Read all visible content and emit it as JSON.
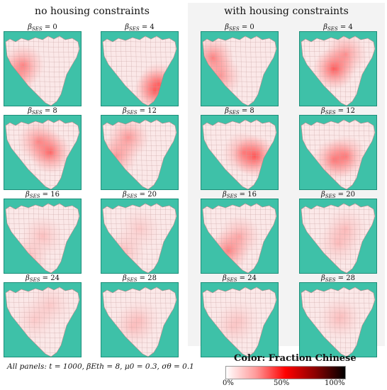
{
  "groups": [
    {
      "title": "no housing constraints"
    },
    {
      "title": "with housing constraints"
    }
  ],
  "panel_symbol": "β",
  "panel_subscript": "SES",
  "panels": [
    {
      "beta": "0"
    },
    {
      "beta": "4"
    },
    {
      "beta": "8"
    },
    {
      "beta": "12"
    },
    {
      "beta": "16"
    },
    {
      "beta": "20"
    },
    {
      "beta": "24"
    },
    {
      "beta": "28"
    }
  ],
  "caption": "All panels: t = 1000, βEth = 8, μ0 = 0.3, σθ = 0.1",
  "legend": {
    "title": "Color: Fraction Chinese",
    "ticks": [
      "0%",
      "50%",
      "100%"
    ],
    "colors": [
      "#ffffff",
      "#ff0000",
      "#000000"
    ]
  },
  "colors": {
    "water": "#3ec1a8",
    "land": "#fbe8e8"
  }
}
